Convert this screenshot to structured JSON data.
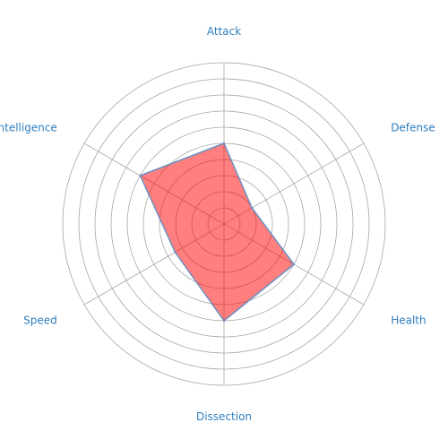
{
  "chart_data": {
    "type": "radar",
    "axes": [
      "Attack",
      "Defense",
      "Health",
      "Dissection",
      "Speed",
      "Intelligence"
    ],
    "series": [
      {
        "values": [
          50,
          20,
          50,
          60,
          35,
          60
        ]
      }
    ],
    "range": [
      0,
      100
    ],
    "rings": 10,
    "grid": true,
    "colors": {
      "fill": "#ff0000",
      "fill_opacity": 0.5,
      "stroke": "#6a8fc0",
      "grid": "#a6a6a6",
      "label": "#2f7fbf"
    }
  }
}
